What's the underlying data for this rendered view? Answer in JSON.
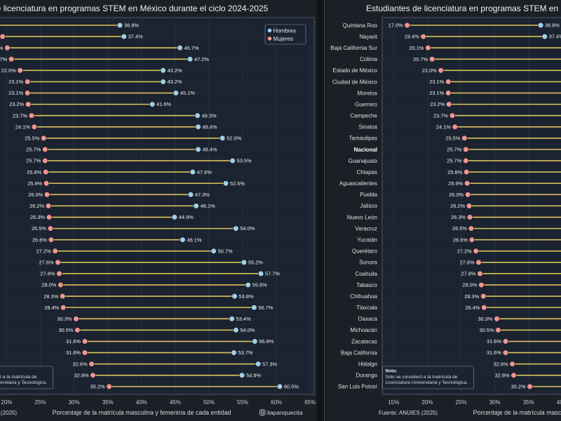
{
  "chart_data": {
    "type": "scatter",
    "title": "Estudiantes de licenciatura en programas STEM en México durante el ciclo 2024-2025",
    "xlabel": "Porcentaje de la matrícula masculina y femenina de cada entidad",
    "ylabel": "",
    "xlim": [
      13.3,
      65.6
    ],
    "xticks": [
      15,
      20,
      25,
      30,
      35,
      40,
      45,
      50,
      55,
      60,
      65
    ],
    "tick_suffix": "%",
    "value_suffix": "%",
    "grid": true,
    "legend": "top-right",
    "categories": [
      "Quintana Roo",
      "Nayarit",
      "Baja California Sur",
      "Colima",
      "Estado de México",
      "Ciudad de México",
      "Morelos",
      "Guerrero",
      "Campeche",
      "Sinaloa",
      "Tamaulipas",
      "Nacional",
      "Guanajuato",
      "Chiapas",
      "Aguascalientes",
      "Puebla",
      "Jalisco",
      "Nuevo León",
      "Veracruz",
      "Yucatán",
      "Querétaro",
      "Sonora",
      "Coahuila",
      "Tabasco",
      "Chihuahua",
      "Tlaxcala",
      "Oaxaca",
      "Michoacán",
      "Zacatecas",
      "Baja California",
      "Hidalgo",
      "Durango",
      "San Luis Potosí"
    ],
    "highlight_category": "Nacional",
    "series": [
      {
        "name": "Hombres",
        "color": "#9fd0ea",
        "values": [
          36.8,
          37.4,
          45.7,
          47.2,
          43.2,
          43.2,
          45.1,
          41.6,
          48.3,
          48.4,
          52.0,
          48.4,
          53.5,
          47.6,
          52.5,
          47.3,
          48.1,
          44.9,
          54.0,
          46.1,
          50.7,
          55.2,
          57.7,
          55.8,
          53.8,
          56.7,
          53.4,
          54.0,
          56.8,
          53.7,
          57.3,
          54.9,
          60.5
        ]
      },
      {
        "name": "Mujeres",
        "color": "#ef9591",
        "values": [
          17.0,
          19.4,
          20.1,
          20.7,
          22.0,
          23.1,
          23.1,
          23.2,
          23.7,
          24.1,
          25.5,
          25.7,
          25.7,
          25.8,
          25.9,
          26.0,
          26.2,
          26.3,
          26.5,
          26.6,
          27.2,
          27.6,
          27.8,
          28.0,
          28.3,
          28.4,
          30.3,
          30.5,
          31.6,
          31.6,
          32.6,
          32.8,
          35.2
        ]
      }
    ],
    "connector_color": "#dcc35b",
    "note": {
      "title": "Nota:",
      "lines": [
        "Solo se consideró a la matrícula de",
        "Licenciatura Universitaria y Tecnológica."
      ]
    },
    "source": "Fuente: ANUIES (2025)",
    "credit": "ilapanquecita",
    "credit_icon": "instagram-icon"
  }
}
